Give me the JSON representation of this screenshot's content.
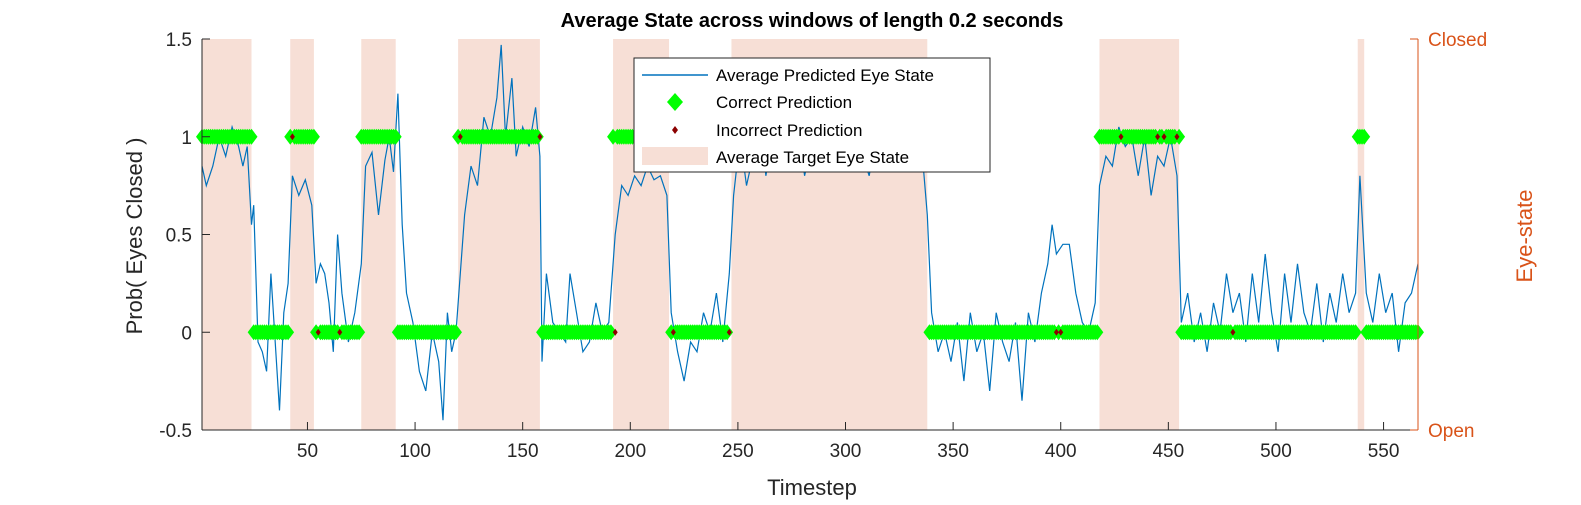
{
  "chart_data": {
    "type": "line",
    "title": "Average State across windows of length 0.2 seconds",
    "xlabel": "Timestep",
    "ylabel": "Prob( Eyes Closed )",
    "right_label": "Eye-state",
    "right_ticks": [
      "Closed",
      "Open"
    ],
    "xlim": [
      1,
      566
    ],
    "ylim": [
      -0.5,
      1.5
    ],
    "xticks": [
      50,
      100,
      150,
      200,
      250,
      300,
      350,
      400,
      450,
      500,
      550
    ],
    "yticks": [
      -0.5,
      0,
      0.5,
      1,
      1.5
    ],
    "grid": false,
    "legend": "top-center",
    "legend_entries": [
      "Average Predicted Eye State",
      "Correct Prediction",
      "Incorrect Prediction",
      "Average Target Eye State"
    ],
    "colors": {
      "line": "#0072BD",
      "correct": "#00FF00",
      "incorrect": "#8B0000",
      "target": "#F7DFD6",
      "right_axis": "#D95319"
    },
    "target_closed_intervals": [
      [
        1,
        24
      ],
      [
        42,
        53
      ],
      [
        75,
        91
      ],
      [
        120,
        158
      ],
      [
        192,
        218
      ],
      [
        247,
        338
      ],
      [
        418,
        455
      ],
      [
        538,
        541
      ]
    ],
    "incorrect_predictions": [
      [
        43,
        1
      ],
      [
        121,
        1
      ],
      [
        158,
        1
      ],
      [
        428,
        1
      ],
      [
        445,
        1
      ],
      [
        448,
        1
      ],
      [
        454,
        1
      ],
      [
        55,
        0
      ],
      [
        65,
        0
      ],
      [
        193,
        0
      ],
      [
        220,
        0
      ],
      [
        246,
        0
      ],
      [
        398,
        0
      ],
      [
        400,
        0
      ],
      [
        480,
        0
      ]
    ],
    "predicted_keypoints": [
      [
        1,
        0.85
      ],
      [
        3,
        0.75
      ],
      [
        6,
        0.85
      ],
      [
        9,
        1.0
      ],
      [
        12,
        0.9
      ],
      [
        15,
        1.05
      ],
      [
        18,
        0.95
      ],
      [
        20,
        0.85
      ],
      [
        22,
        0.95
      ],
      [
        24,
        0.55
      ],
      [
        25,
        0.65
      ],
      [
        27,
        -0.05
      ],
      [
        29,
        -0.1
      ],
      [
        31,
        -0.2
      ],
      [
        33,
        0.3
      ],
      [
        35,
        -0.05
      ],
      [
        37,
        -0.4
      ],
      [
        39,
        0.1
      ],
      [
        41,
        0.25
      ],
      [
        43,
        0.8
      ],
      [
        46,
        0.7
      ],
      [
        49,
        0.78
      ],
      [
        52,
        0.65
      ],
      [
        54,
        0.25
      ],
      [
        56,
        0.35
      ],
      [
        58,
        0.3
      ],
      [
        60,
        0.15
      ],
      [
        62,
        -0.1
      ],
      [
        64,
        0.5
      ],
      [
        66,
        0.2
      ],
      [
        69,
        -0.05
      ],
      [
        72,
        0.1
      ],
      [
        75,
        0.35
      ],
      [
        77,
        0.85
      ],
      [
        80,
        0.92
      ],
      [
        83,
        0.6
      ],
      [
        86,
        0.88
      ],
      [
        88,
        1.0
      ],
      [
        90,
        0.82
      ],
      [
        92,
        1.22
      ],
      [
        94,
        0.55
      ],
      [
        96,
        0.2
      ],
      [
        99,
        0.05
      ],
      [
        102,
        -0.2
      ],
      [
        105,
        -0.3
      ],
      [
        108,
        0.0
      ],
      [
        111,
        -0.15
      ],
      [
        113,
        -0.45
      ],
      [
        115,
        0.1
      ],
      [
        117,
        -0.1
      ],
      [
        119,
        0.0
      ],
      [
        121,
        0.3
      ],
      [
        123,
        0.6
      ],
      [
        126,
        0.85
      ],
      [
        129,
        0.75
      ],
      [
        132,
        1.1
      ],
      [
        135,
        1.0
      ],
      [
        138,
        1.2
      ],
      [
        140,
        1.47
      ],
      [
        142,
        1.0
      ],
      [
        145,
        1.3
      ],
      [
        147,
        0.9
      ],
      [
        150,
        1.05
      ],
      [
        153,
        0.95
      ],
      [
        156,
        1.15
      ],
      [
        158,
        0.9
      ],
      [
        159,
        -0.15
      ],
      [
        161,
        0.3
      ],
      [
        164,
        0.05
      ],
      [
        167,
        0.0
      ],
      [
        170,
        -0.05
      ],
      [
        172,
        0.3
      ],
      [
        175,
        0.1
      ],
      [
        178,
        -0.1
      ],
      [
        181,
        -0.05
      ],
      [
        184,
        0.15
      ],
      [
        187,
        0.0
      ],
      [
        190,
        0.05
      ],
      [
        193,
        0.5
      ],
      [
        196,
        0.75
      ],
      [
        199,
        0.7
      ],
      [
        202,
        0.8
      ],
      [
        205,
        0.75
      ],
      [
        208,
        0.85
      ],
      [
        211,
        0.78
      ],
      [
        214,
        0.8
      ],
      [
        217,
        0.7
      ],
      [
        219,
        0.1
      ],
      [
        222,
        -0.1
      ],
      [
        225,
        -0.25
      ],
      [
        228,
        -0.05
      ],
      [
        231,
        -0.1
      ],
      [
        234,
        0.1
      ],
      [
        237,
        0.0
      ],
      [
        240,
        0.2
      ],
      [
        243,
        -0.05
      ],
      [
        246,
        0.3
      ],
      [
        248,
        0.7
      ],
      [
        251,
        1.0
      ],
      [
        254,
        0.75
      ],
      [
        257,
        0.9
      ],
      [
        260,
        1.1
      ],
      [
        263,
        0.8
      ],
      [
        266,
        1.0
      ],
      [
        269,
        0.85
      ],
      [
        272,
        1.05
      ],
      [
        275,
        0.9
      ],
      [
        278,
        1.05
      ],
      [
        281,
        0.8
      ],
      [
        284,
        0.95
      ],
      [
        287,
        1.1
      ],
      [
        290,
        0.9
      ],
      [
        293,
        1.0
      ],
      [
        296,
        0.85
      ],
      [
        299,
        1.0
      ],
      [
        302,
        0.9
      ],
      [
        305,
        1.05
      ],
      [
        308,
        0.9
      ],
      [
        311,
        0.8
      ],
      [
        314,
        1.0
      ],
      [
        317,
        0.95
      ],
      [
        320,
        1.05
      ],
      [
        323,
        0.85
      ],
      [
        326,
        1.0
      ],
      [
        329,
        0.9
      ],
      [
        332,
        0.95
      ],
      [
        335,
        1.0
      ],
      [
        338,
        0.6
      ],
      [
        340,
        0.1
      ],
      [
        343,
        -0.1
      ],
      [
        346,
        0.0
      ],
      [
        349,
        -0.15
      ],
      [
        352,
        0.05
      ],
      [
        355,
        -0.25
      ],
      [
        358,
        0.1
      ],
      [
        361,
        -0.1
      ],
      [
        364,
        0.0
      ],
      [
        367,
        -0.3
      ],
      [
        370,
        0.1
      ],
      [
        373,
        -0.05
      ],
      [
        376,
        -0.15
      ],
      [
        379,
        0.05
      ],
      [
        382,
        -0.35
      ],
      [
        385,
        0.1
      ],
      [
        388,
        -0.05
      ],
      [
        391,
        0.2
      ],
      [
        394,
        0.35
      ],
      [
        396,
        0.55
      ],
      [
        398,
        0.4
      ],
      [
        401,
        0.45
      ],
      [
        404,
        0.45
      ],
      [
        407,
        0.2
      ],
      [
        410,
        0.05
      ],
      [
        413,
        0.0
      ],
      [
        416,
        0.15
      ],
      [
        418,
        0.75
      ],
      [
        421,
        0.9
      ],
      [
        424,
        0.85
      ],
      [
        427,
        1.05
      ],
      [
        430,
        0.95
      ],
      [
        433,
        1.0
      ],
      [
        436,
        0.8
      ],
      [
        439,
        1.0
      ],
      [
        442,
        0.7
      ],
      [
        445,
        0.9
      ],
      [
        448,
        0.85
      ],
      [
        451,
        1.0
      ],
      [
        454,
        0.8
      ],
      [
        456,
        0.05
      ],
      [
        459,
        0.2
      ],
      [
        462,
        -0.05
      ],
      [
        465,
        0.1
      ],
      [
        468,
        -0.1
      ],
      [
        471,
        0.15
      ],
      [
        474,
        0.0
      ],
      [
        477,
        0.3
      ],
      [
        480,
        0.1
      ],
      [
        483,
        0.2
      ],
      [
        486,
        -0.05
      ],
      [
        489,
        0.3
      ],
      [
        492,
        0.05
      ],
      [
        495,
        0.4
      ],
      [
        498,
        0.1
      ],
      [
        501,
        -0.1
      ],
      [
        504,
        0.3
      ],
      [
        507,
        0.05
      ],
      [
        510,
        0.35
      ],
      [
        513,
        0.1
      ],
      [
        516,
        0.0
      ],
      [
        519,
        0.25
      ],
      [
        522,
        -0.05
      ],
      [
        525,
        0.2
      ],
      [
        528,
        0.05
      ],
      [
        531,
        0.3
      ],
      [
        534,
        0.1
      ],
      [
        537,
        0.2
      ],
      [
        539,
        0.8
      ],
      [
        542,
        0.2
      ],
      [
        545,
        0.05
      ],
      [
        548,
        0.3
      ],
      [
        551,
        0.1
      ],
      [
        554,
        0.2
      ],
      [
        557,
        -0.1
      ],
      [
        560,
        0.15
      ],
      [
        563,
        0.2
      ],
      [
        566,
        0.35
      ]
    ]
  }
}
